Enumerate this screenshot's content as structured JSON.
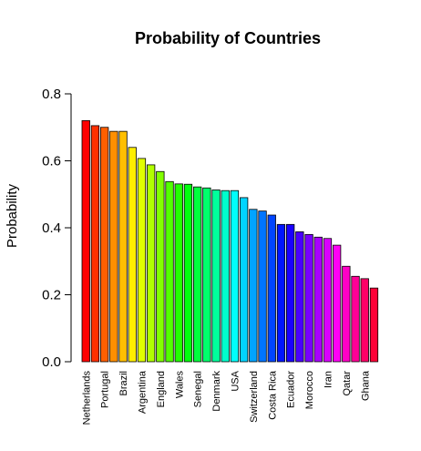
{
  "chart_data": {
    "type": "bar",
    "title": "Probability of Countries",
    "xlabel": "",
    "ylabel": "Probability",
    "ylim": [
      0,
      0.8
    ],
    "yticks": [
      "0.0",
      "0.2",
      "0.4",
      "0.6",
      "0.8"
    ],
    "ytick_values": [
      0,
      0.2,
      0.4,
      0.6,
      0.8
    ],
    "grid": false,
    "legend": "none",
    "visible_category_labels": [
      "Netherlands",
      "Portugal",
      "Brazil",
      "Argentina",
      "England",
      "Wales",
      "Senegal",
      "Denmark",
      "USA",
      "Switzerland",
      "Costa Rica",
      "Ecuador",
      "Morocco",
      "Iran",
      "Qatar",
      "Ghana"
    ],
    "values": [
      0.72,
      0.705,
      0.7,
      0.688,
      0.688,
      0.64,
      0.607,
      0.588,
      0.568,
      0.538,
      0.531,
      0.53,
      0.522,
      0.519,
      0.513,
      0.511,
      0.511,
      0.49,
      0.455,
      0.45,
      0.438,
      0.41,
      0.41,
      0.388,
      0.38,
      0.372,
      0.368,
      0.348,
      0.285,
      0.255,
      0.248,
      0.22
    ],
    "colors": [
      "#FF0000",
      "#FF3000",
      "#FF5F00",
      "#FF8F00",
      "#FFBF00",
      "#FFEE00",
      "#E1FF00",
      "#B1FF00",
      "#82FF00",
      "#52FF00",
      "#22FF00",
      "#00FF0D",
      "#00FF3D",
      "#00FF6C",
      "#00FF9C",
      "#00FFCC",
      "#00FFFB",
      "#00D4FF",
      "#00A4FF",
      "#0075FF",
      "#0045FF",
      "#0015FF",
      "#1A00FF",
      "#4A00FF",
      "#7900FF",
      "#A900FF",
      "#D900FF",
      "#FF00F6",
      "#FF00C6",
      "#FF0096",
      "#FF0067",
      "#FF0037"
    ]
  }
}
